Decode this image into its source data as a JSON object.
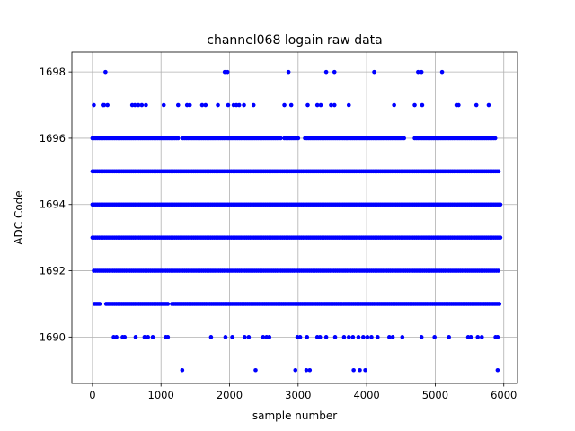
{
  "chart_data": {
    "type": "scatter",
    "title": "channel068 logain raw data",
    "xlabel": "sample number",
    "ylabel": "ADC Code",
    "xlim": [
      -300,
      6200
    ],
    "ylim": [
      1688.6,
      1698.6
    ],
    "xticks": [
      0,
      1000,
      2000,
      3000,
      4000,
      5000,
      6000
    ],
    "yticks": [
      1690,
      1692,
      1694,
      1696,
      1698
    ],
    "grid": true,
    "marker_color": "#0000ff",
    "series": [
      {
        "levels": [
          {
            "y": 1698,
            "x": [
              190,
              1930,
              1970,
              2860,
              3410,
              3530,
              4110,
              4750,
              4800,
              5100
            ]
          },
          {
            "y": 1697,
            "x": [
              20,
              150,
              170,
              220,
              580,
              620,
              670,
              720,
              780,
              1040,
              1250,
              1380,
              1420,
              1600,
              1650,
              1830,
              1980,
              2060,
              2100,
              2140,
              2210,
              2350,
              2800,
              2900,
              3140,
              3280,
              3330,
              3480,
              3530,
              3740,
              4400,
              4700,
              4810,
              5310,
              5340,
              5600,
              5780
            ]
          },
          {
            "y": 1696,
            "continuous": [
              [
                0,
                1260
              ],
              [
                1320,
                1900
              ],
              [
                1920,
                2750
              ],
              [
                2800,
                3000
              ],
              [
                3100,
                3700
              ],
              [
                3720,
                4550
              ],
              [
                4700,
                5880
              ]
            ]
          },
          {
            "y": 1695,
            "continuous": [
              [
                0,
                5930
              ]
            ]
          },
          {
            "y": 1694,
            "continuous": [
              [
                0,
                5950
              ]
            ]
          },
          {
            "y": 1693,
            "continuous": [
              [
                0,
                5950
              ]
            ]
          },
          {
            "y": 1692,
            "continuous": [
              [
                20,
                5920
              ]
            ]
          },
          {
            "y": 1691,
            "continuous": [
              [
                30,
                110
              ],
              [
                200,
                1100
              ],
              [
                1160,
                5950
              ]
            ]
          },
          {
            "y": 1690,
            "x": [
              310,
              350,
              440,
              470,
              630,
              760,
              810,
              880,
              1070,
              1100,
              1730,
              1940,
              2040,
              2220,
              2280,
              2490,
              2540,
              2580,
              2990,
              3030,
              3130,
              3280,
              3320,
              3410,
              3540,
              3670,
              3740,
              3800,
              3880,
              3950,
              4010,
              4070,
              4160,
              4330,
              4380,
              4520,
              4800,
              4990,
              5200,
              5480,
              5520,
              5620,
              5680,
              5880,
              5910
            ]
          },
          {
            "y": 1689,
            "x": [
              1310,
              2380,
              2960,
              3120,
              3170,
              3810,
              3900,
              3980,
              5910
            ]
          }
        ]
      }
    ]
  }
}
